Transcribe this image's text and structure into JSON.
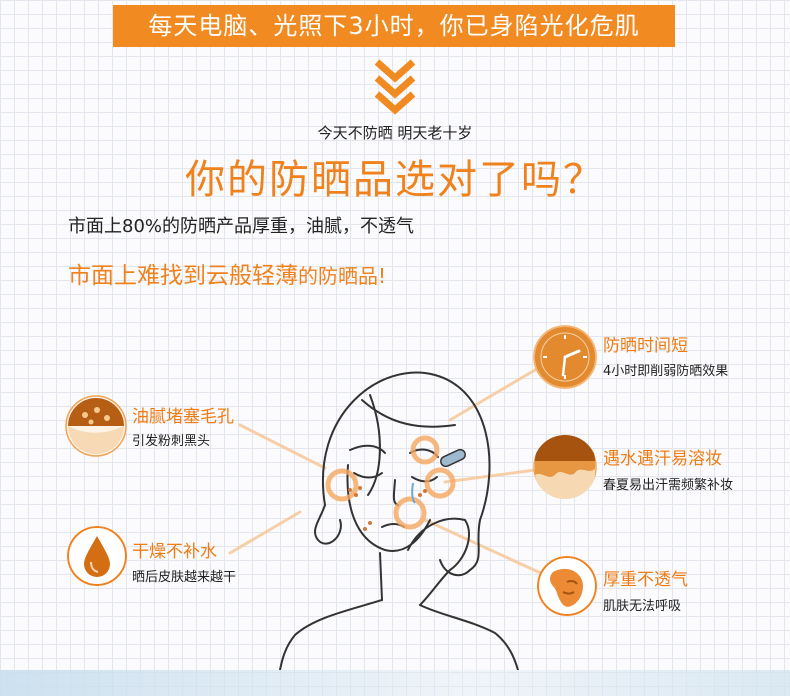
{
  "banner": {
    "text": "每天电脑、光照下3小时，你已身陷光化危肌"
  },
  "headline": {
    "sub": "今天不防晒 明天老十岁",
    "main": "你的防晒品选对了吗？"
  },
  "market": {
    "line1": "市面上80%的防晒产品厚重，油腻，不透气",
    "line2_main": "市面上难找到云般轻薄",
    "line2_tail": "的防晒品!"
  },
  "features": [
    {
      "id": "greasy",
      "title": "油腻堵塞毛孔",
      "desc": "引发粉刺黑头",
      "icon": "pores-icon"
    },
    {
      "id": "dry",
      "title": "干燥不补水",
      "desc": "晒后皮肤越来越干",
      "icon": "water-drop-icon"
    },
    {
      "id": "short",
      "title": "防晒时间短",
      "desc": "4小时即削弱防晒效果",
      "icon": "clock-icon"
    },
    {
      "id": "melt",
      "title": "遇水遇汗易溶妆",
      "desc": "春夏易出汗需频繁补妆",
      "icon": "melting-makeup-icon"
    },
    {
      "id": "heavy",
      "title": "厚重不透气",
      "desc": "肌肤无法呼吸",
      "icon": "face-mask-icon"
    }
  ],
  "colors": {
    "accent": "#f0821e",
    "banner_bg": "#f28a22",
    "text_dark": "#222222"
  }
}
